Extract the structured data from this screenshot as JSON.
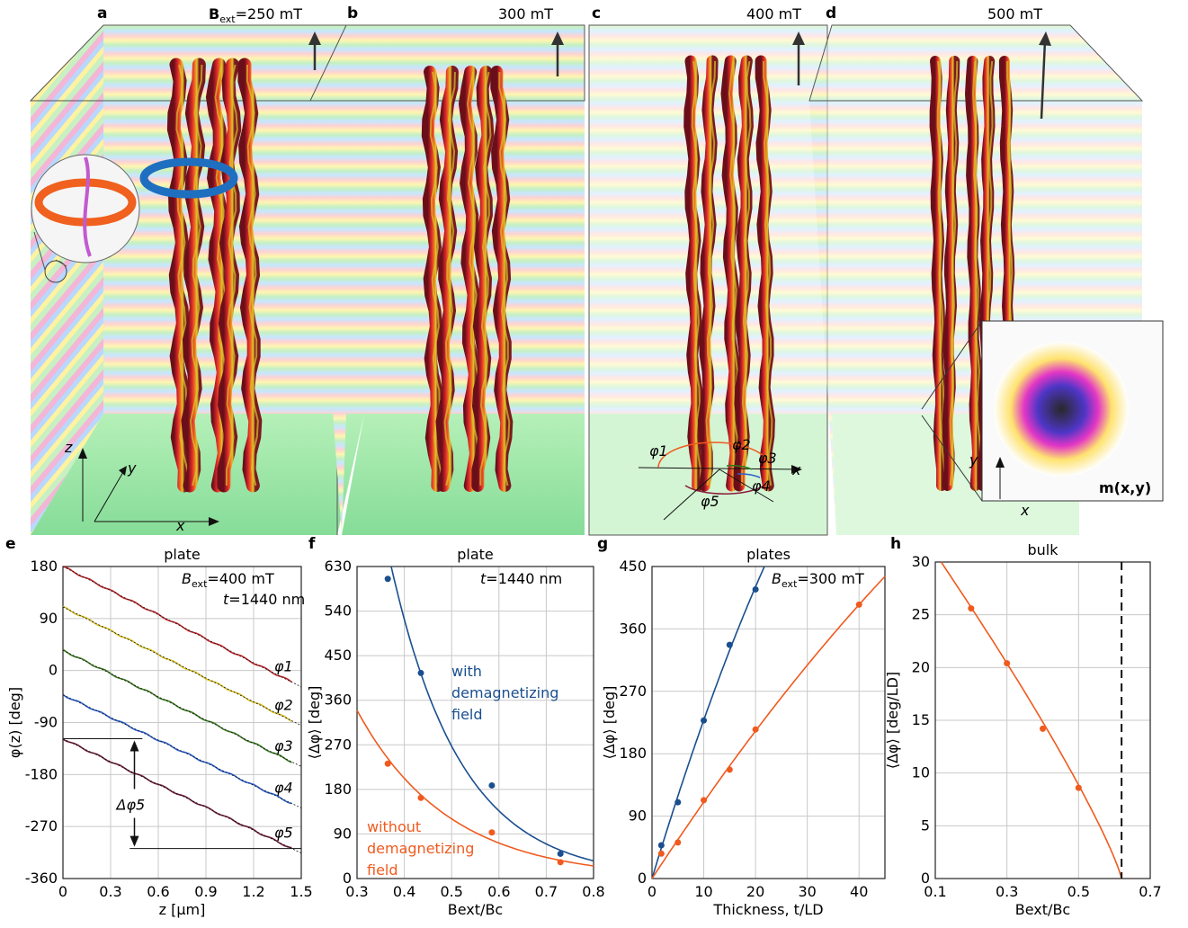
{
  "colors": {
    "blue": "#1a4f8f",
    "orange": "#f05a1e",
    "grid": "#c8c8c8",
    "tube_red": "#c0262a",
    "tube_yellow": "#d8c025"
  },
  "panels_top": [
    {
      "letter": "a",
      "field_bold": "B",
      "field_sub": "ext",
      "field_val": "=250 mT"
    },
    {
      "letter": "b",
      "field": "300 mT"
    },
    {
      "letter": "c",
      "field": "400 mT"
    },
    {
      "letter": "d",
      "field": "500 mT"
    }
  ],
  "labels_top": {
    "axis_x": "x",
    "axis_y": "y",
    "axis_z": "z",
    "phi1": "φ1",
    "phi2": "φ2",
    "phi3": "φ3",
    "phi4": "φ4",
    "phi5": "φ5",
    "inset_label": "m(x,y)"
  },
  "chart_data": [
    {
      "panel": "e",
      "type": "line",
      "title": "plate",
      "annotation_1": "Bext=400 mT",
      "annotation_2": "t=1440 nm",
      "xlabel": "z [µm]",
      "ylabel": "φ(z) [deg]",
      "xlim": [
        0,
        1.5
      ],
      "ylim": [
        -360,
        180
      ],
      "xticks": [
        "0",
        "0.3",
        "0.6",
        "0.9",
        "1.2",
        "1.5"
      ],
      "yticks": [
        "180",
        "90",
        "0",
        "-90",
        "-180",
        "-270",
        "-360"
      ],
      "series": [
        {
          "name": "φ1",
          "color": "#c0262a",
          "x": [
            0,
            1.44
          ],
          "y": [
            180,
            -20
          ]
        },
        {
          "name": "φ2",
          "color": "#d8c025",
          "x": [
            0,
            1.44
          ],
          "y": [
            110,
            -87
          ]
        },
        {
          "name": "φ3",
          "color": "#3a7a20",
          "x": [
            0,
            1.44
          ],
          "y": [
            35,
            -158
          ]
        },
        {
          "name": "φ4",
          "color": "#2a5fd0",
          "x": [
            0,
            1.44
          ],
          "y": [
            -42,
            -230
          ]
        },
        {
          "name": "φ5",
          "color": "#6a1a3a",
          "x": [
            0,
            1.44
          ],
          "y": [
            -118,
            -308
          ]
        }
      ],
      "delta_label": "Δφ5"
    },
    {
      "panel": "f",
      "type": "line",
      "title": "plate",
      "annotation": "t=1440 nm",
      "xlabel": "Bext/Bc",
      "ylabel": "⟨Δφ⟩ [deg]",
      "xlim": [
        0.3,
        0.8
      ],
      "ylim": [
        0,
        630
      ],
      "xticks": [
        "0.3",
        "0.4",
        "0.5",
        "0.6",
        "0.7",
        "0.8"
      ],
      "yticks": [
        "0",
        "90",
        "180",
        "270",
        "360",
        "450",
        "540",
        "630"
      ],
      "series": [
        {
          "name": "with demagnetizing field",
          "color": "#1a4f8f",
          "x": [
            0.365,
            0.435,
            0.585,
            0.73
          ],
          "y": [
            605,
            415,
            188,
            50
          ]
        },
        {
          "name": "without demagnetizing field",
          "color": "#f05a1e",
          "x": [
            0.365,
            0.435,
            0.585,
            0.73
          ],
          "y": [
            232,
            163,
            93,
            33
          ]
        }
      ]
    },
    {
      "panel": "g",
      "type": "line",
      "title": "plates",
      "annotation": "Bext=300 mT",
      "xlabel": "Thickness, t/LD",
      "ylabel": "⟨Δφ⟩ [deg]",
      "xlim": [
        0,
        45
      ],
      "ylim": [
        0,
        450
      ],
      "xticks": [
        "0",
        "10",
        "20",
        "30",
        "40"
      ],
      "yticks": [
        "0",
        "90",
        "180",
        "270",
        "360",
        "450"
      ],
      "series": [
        {
          "name": "with demagnetizing field",
          "color": "#1a4f8f",
          "x": [
            1.8,
            5,
            10,
            15,
            20
          ],
          "y": [
            48,
            110,
            228,
            337,
            417
          ]
        },
        {
          "name": "without demagnetizing field",
          "color": "#f05a1e",
          "x": [
            1.8,
            5,
            10,
            15,
            20,
            40
          ],
          "y": [
            36,
            52,
            113,
            157,
            215,
            395
          ]
        }
      ]
    },
    {
      "panel": "h",
      "type": "line",
      "title": "bulk",
      "xlabel": "Bext/Bc",
      "ylabel": "⟨Δφ⟩ [deg/LD]",
      "xlim": [
        0.1,
        0.7
      ],
      "ylim": [
        0,
        30
      ],
      "xticks": [
        "0.1",
        "0.3",
        "0.5",
        "0.7"
      ],
      "yticks": [
        "0",
        "5",
        "10",
        "15",
        "20",
        "25",
        "30"
      ],
      "series": [
        {
          "name": "bulk",
          "color": "#f05a1e",
          "x": [
            0.2,
            0.3,
            0.4,
            0.5
          ],
          "y": [
            25.6,
            20.4,
            14.2,
            8.6
          ]
        }
      ],
      "vline_x": 0.62
    }
  ]
}
